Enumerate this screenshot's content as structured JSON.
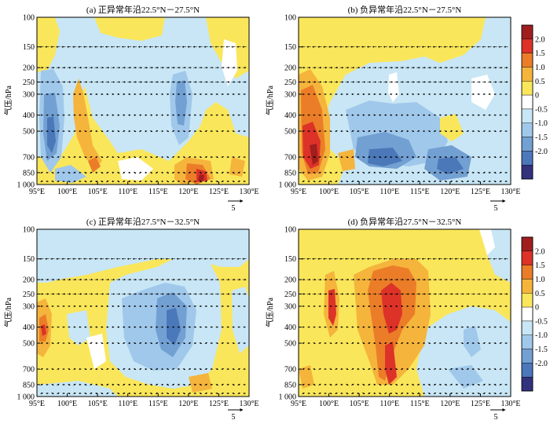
{
  "figure": {
    "common": {
      "ylabel": "气压/hPa",
      "y_tick_labels": [
        "100",
        "150",
        "200",
        "250",
        "300",
        "400",
        "500",
        "700",
        "850",
        "1 000"
      ],
      "x_tick_labels": [
        "95°E",
        "100°E",
        "105°E",
        "110°E",
        "115°E",
        "120°E",
        "125°E",
        "130°E"
      ],
      "ref_vector_label": "5",
      "colorbar_labels": [
        "2.0",
        "1.5",
        "1.0",
        "0.5",
        "0",
        "-0.5",
        "-1.0",
        "-1.5",
        "-2.0"
      ],
      "colorbar_colors": [
        "#a01e1e",
        "#dc3228",
        "#eb7d28",
        "#f5b43c",
        "#fae65a",
        "#ffffff",
        "#c8e6f5",
        "#a0c8eb",
        "#73a0d2",
        "#4b78b9",
        "#32327d"
      ]
    },
    "panels": [
      {
        "title": "(a) 正异常年沿22.5°N－27.5°N"
      },
      {
        "title": "(b) 负异常年沿22.5°N－27.5°N"
      },
      {
        "title": "(c) 正异常年沿27.5°N－32.5°N"
      },
      {
        "title": "(d) 负异常年沿27.5°N－32.5°N"
      }
    ]
  },
  "chart_data": [
    {
      "type": "heatmap",
      "title": "(a) 正异常年沿22.5°N－27.5°N",
      "ylabel": "气压/hPa",
      "x_range": [
        95,
        130
      ],
      "y_levels_hPa": [
        100,
        150,
        200,
        250,
        300,
        400,
        500,
        700,
        850,
        1000
      ],
      "anomalies": [
        {
          "lon": 96,
          "p": 520,
          "value": -1.5
        },
        {
          "lon": 120,
          "p": 380,
          "value": -1.0
        },
        {
          "lon": 101.5,
          "p": 330,
          "value": 1.0
        },
        {
          "lon": 121.5,
          "p": 950,
          "value": 2.0
        },
        {
          "lon": 124,
          "p": 920,
          "value": 1.5
        },
        {
          "lon": 104.5,
          "p": 860,
          "value": 1.0
        },
        {
          "lon": 127.5,
          "p": 620,
          "value": 0.5
        }
      ]
    },
    {
      "type": "heatmap",
      "title": "(b) 负异常年沿22.5°N－27.5°N",
      "ylabel": "气压/hPa",
      "x_range": [
        95,
        130
      ],
      "y_levels_hPa": [
        100,
        150,
        200,
        250,
        300,
        400,
        500,
        700,
        850,
        1000
      ],
      "anomalies": [
        {
          "lon": 97,
          "p": 650,
          "value": 2.0
        },
        {
          "lon": 97.5,
          "p": 420,
          "value": 1.0
        },
        {
          "lon": 107.5,
          "p": 850,
          "value": -1.5
        },
        {
          "lon": 122,
          "p": 880,
          "value": -1.5
        },
        {
          "lon": 110,
          "p": 550,
          "value": -0.5
        },
        {
          "lon": 113.5,
          "p": 450,
          "value": -1.0
        }
      ]
    },
    {
      "type": "heatmap",
      "title": "(c) 正异常年沿27.5°N－32.5°N",
      "ylabel": "气压/hPa",
      "x_range": [
        95,
        130
      ],
      "y_levels_hPa": [
        100,
        150,
        200,
        250,
        300,
        400,
        500,
        700,
        850,
        1000
      ],
      "anomalies": [
        {
          "lon": 95.5,
          "p": 420,
          "value": 1.5
        },
        {
          "lon": 119,
          "p": 400,
          "value": -1.5
        },
        {
          "lon": 115,
          "p": 430,
          "value": -1.0
        },
        {
          "lon": 107.5,
          "p": 560,
          "value": -0.5
        },
        {
          "lon": 128.5,
          "p": 550,
          "value": -0.5
        }
      ]
    },
    {
      "type": "heatmap",
      "title": "(d) 负异常年沿27.5°N－32.5°N",
      "ylabel": "气压/hPa",
      "x_range": [
        95,
        130
      ],
      "y_levels_hPa": [
        100,
        150,
        200,
        250,
        300,
        400,
        500,
        700,
        850,
        1000
      ],
      "anomalies": [
        {
          "lon": 111,
          "p": 400,
          "value": 1.5
        },
        {
          "lon": 100.5,
          "p": 430,
          "value": 1.5
        },
        {
          "lon": 111,
          "p": 700,
          "value": 1.0
        },
        {
          "lon": 122.5,
          "p": 550,
          "value": -0.5
        },
        {
          "lon": 125,
          "p": 600,
          "value": -1.0
        }
      ]
    }
  ]
}
